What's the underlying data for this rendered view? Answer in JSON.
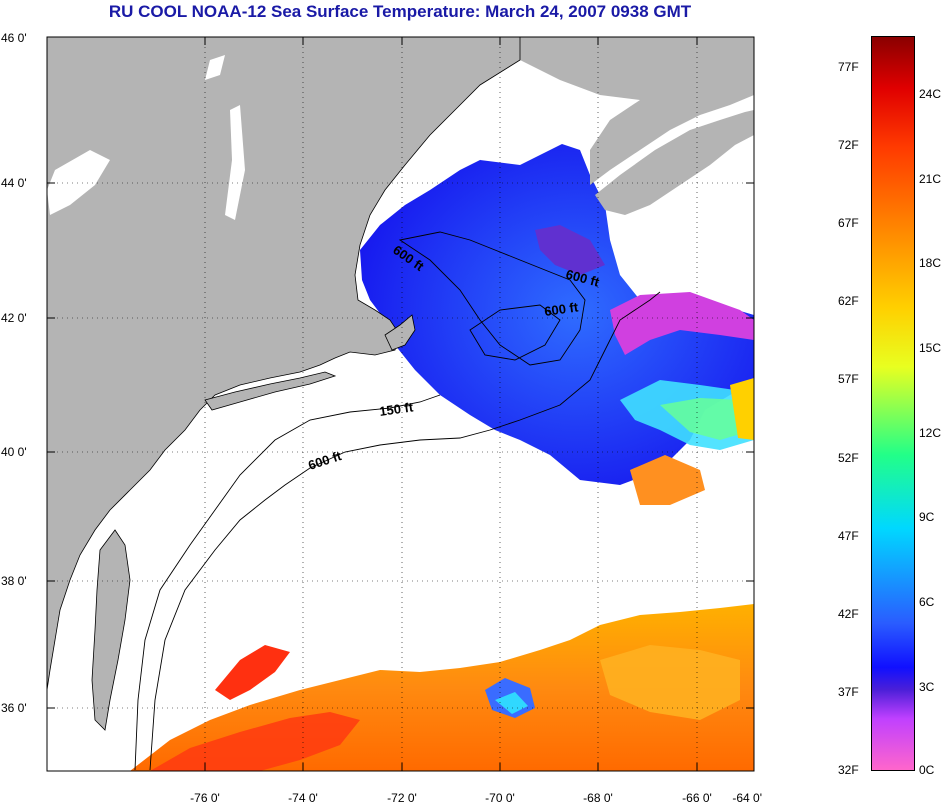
{
  "title": "RU COOL  NOAA-12  Sea Surface Temperature:  March 24, 2007 0938 GMT",
  "lat_labels": [
    "46 0'",
    "44 0'",
    "42 0'",
    "40 0'",
    "38 0'",
    "36 0'"
  ],
  "lon_labels": [
    "-76 0'",
    "-74 0'",
    "-72 0'",
    "-70 0'",
    "-68 0'",
    "-66 0'",
    "-64 0'"
  ],
  "contour_labels": {
    "gom_600_west": "600 ft",
    "gom_600_east": "600 ft",
    "gom_600_mid": "600 ft",
    "shelf_150": "150 ft",
    "shelf_600": "600 ft"
  },
  "colorbar": {
    "fahrenheit": [
      "77F",
      "72F",
      "67F",
      "62F",
      "57F",
      "52F",
      "47F",
      "42F",
      "37F",
      "32F"
    ],
    "celsius": [
      "24C",
      "21C",
      "18C",
      "15C",
      "12C",
      "9C",
      "6C",
      "3C",
      "0C"
    ]
  },
  "colors": {
    "land": "#b4b4b4",
    "title": "#1a1aa6",
    "cold": "#1a2cf0",
    "warm": "#ff7a10"
  }
}
